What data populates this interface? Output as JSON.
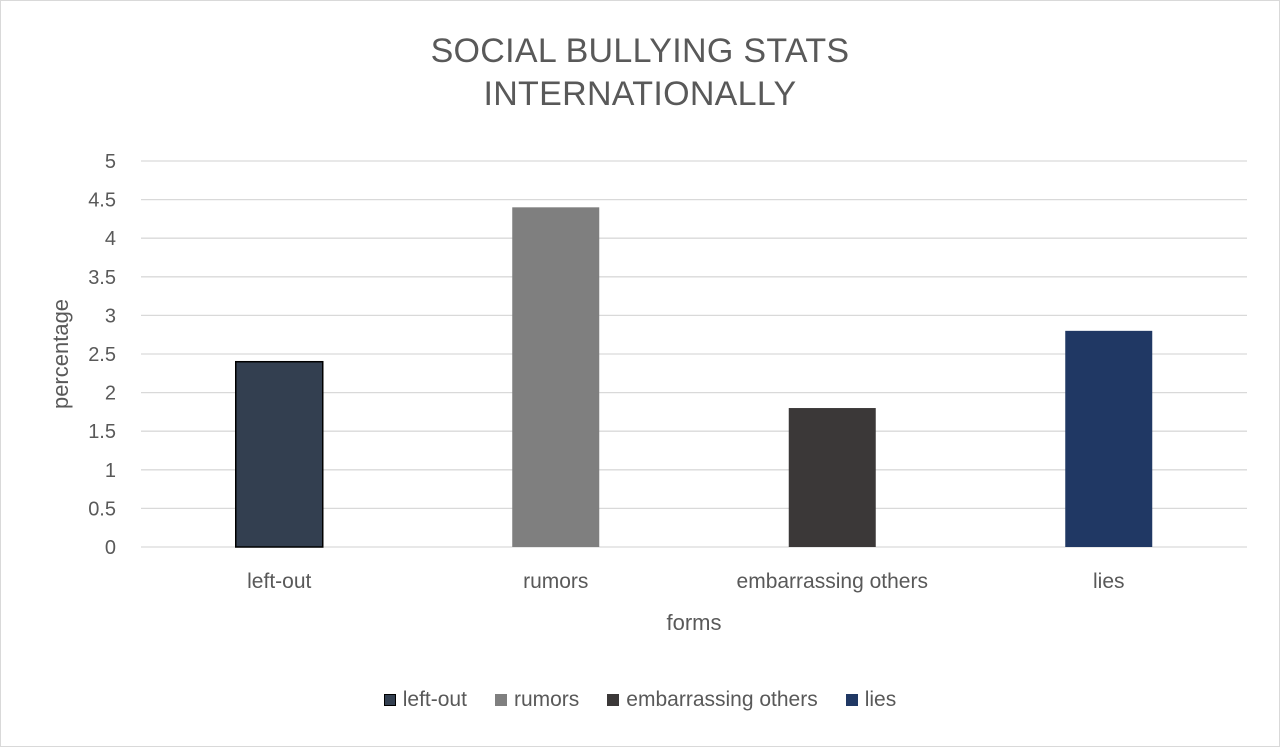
{
  "chart_data": {
    "type": "bar",
    "title_lines": [
      "SOCIAL BULLYING STATS",
      "INTERNATIONALLY"
    ],
    "xlabel": "forms",
    "ylabel": "percentage",
    "categories": [
      "left-out",
      "rumors",
      "embarrassing others",
      "lies"
    ],
    "values": [
      2.4,
      4.4,
      1.8,
      2.8
    ],
    "colors": [
      "#333f50",
      "#7f7f7f",
      "#3b3838",
      "#203864"
    ],
    "ylim": [
      0,
      5
    ],
    "yticks": [
      "0",
      "0.5",
      "1",
      "1.5",
      "2",
      "2.5",
      "3",
      "3.5",
      "4",
      "4.5",
      "5"
    ],
    "grid": true,
    "legend": {
      "placement": "bottom",
      "items": [
        "left-out",
        "rumors",
        "embarrassing others",
        "lies"
      ]
    }
  }
}
